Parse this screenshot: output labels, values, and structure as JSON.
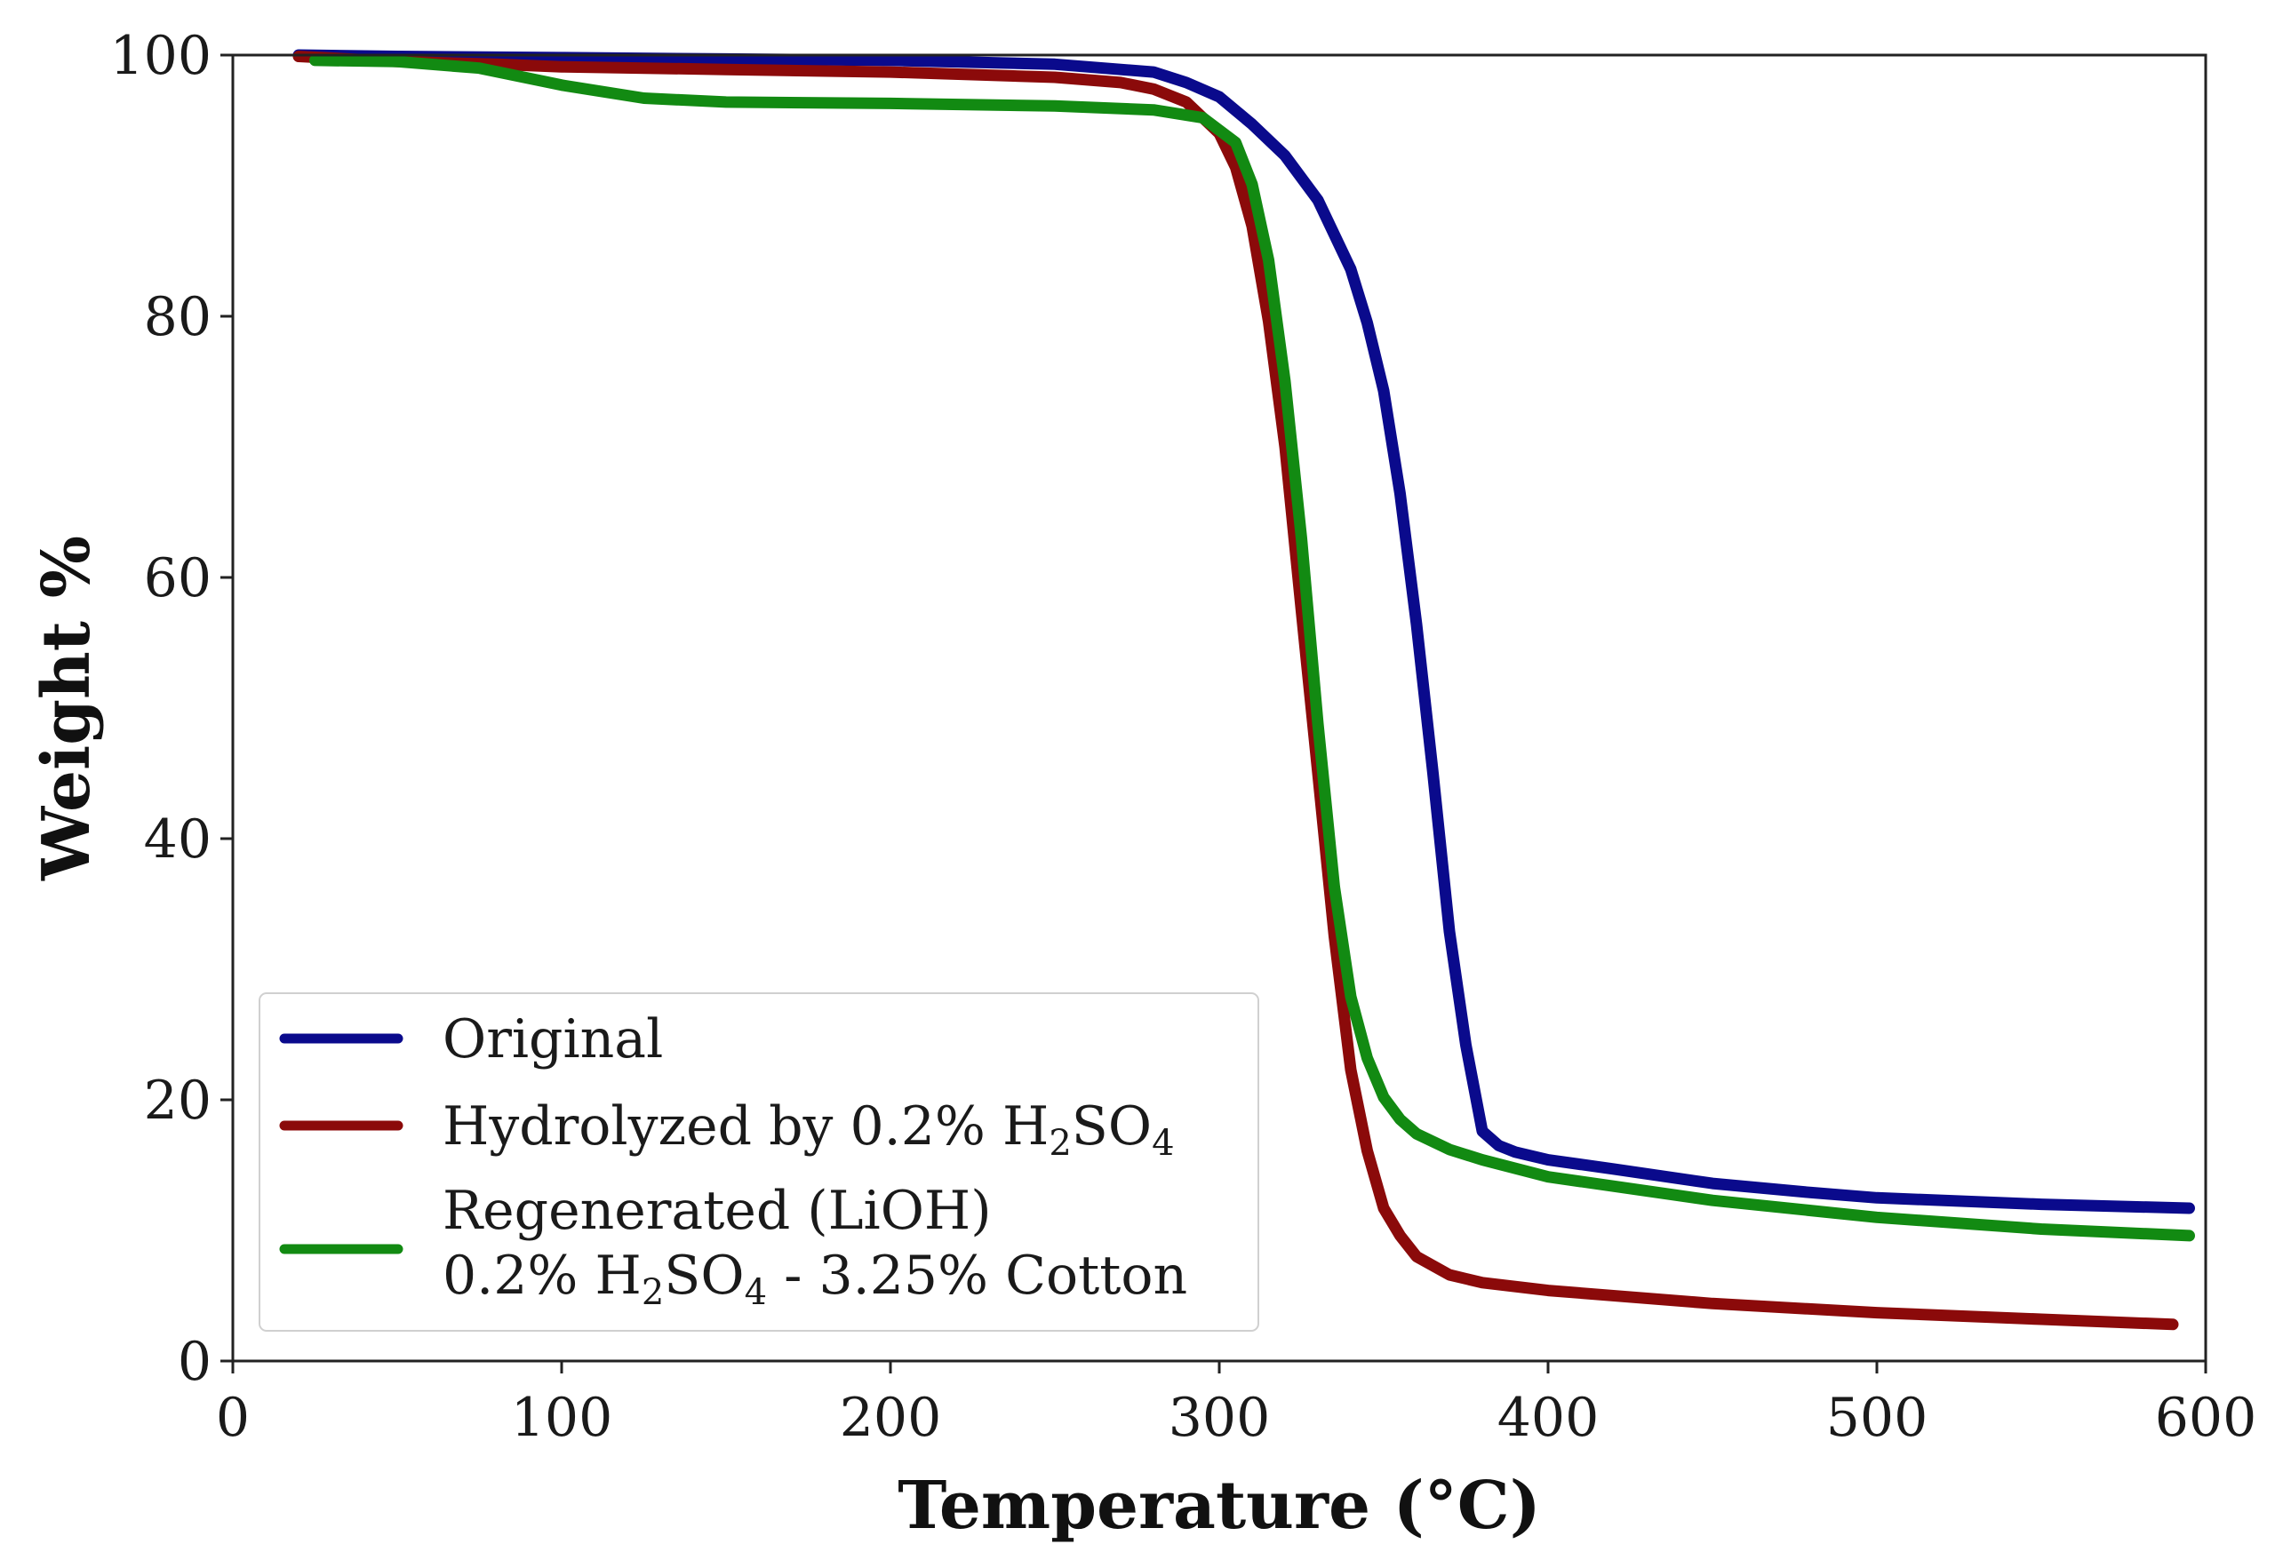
{
  "chart_data": {
    "type": "line",
    "title": "",
    "xlabel": "Temperature (°C)",
    "ylabel": "Weight %",
    "xlim": [
      0,
      600
    ],
    "ylim": [
      0,
      100
    ],
    "xticks": [
      0,
      100,
      200,
      300,
      400,
      500,
      600
    ],
    "yticks": [
      0,
      20,
      40,
      60,
      80,
      100
    ],
    "grid": false,
    "legend_position": "lower-left",
    "series": [
      {
        "name": "Original",
        "legend": [
          "Original"
        ],
        "color": "#0a0a8c",
        "x": [
          20,
          50,
          100,
          150,
          200,
          250,
          280,
          290,
          300,
          310,
          320,
          330,
          340,
          345,
          350,
          355,
          360,
          365,
          370,
          375,
          380,
          385,
          390,
          400,
          420,
          450,
          480,
          500,
          550,
          595
        ],
        "y": [
          100,
          99.9,
          99.8,
          99.7,
          99.6,
          99.3,
          98.7,
          97.9,
          96.8,
          94.7,
          92.3,
          88.9,
          83.6,
          79.5,
          74.3,
          66.4,
          56.4,
          45.0,
          32.9,
          24.2,
          17.6,
          16.5,
          16.0,
          15.4,
          14.7,
          13.6,
          12.9,
          12.5,
          12.0,
          11.7
        ]
      },
      {
        "name": "Hydrolyzed by 0.2% H2SO4",
        "legend": [
          "Hydrolyzed by 0.2% H",
          "2",
          "SO",
          "4"
        ],
        "color": "#8b0a0a",
        "x": [
          20,
          50,
          80,
          100,
          150,
          200,
          250,
          270,
          280,
          290,
          300,
          305,
          310,
          315,
          320,
          325,
          330,
          335,
          340,
          345,
          350,
          355,
          360,
          370,
          380,
          400,
          450,
          500,
          550,
          590
        ],
        "y": [
          99.9,
          99.5,
          99.3,
          99.1,
          98.9,
          98.7,
          98.3,
          97.9,
          97.4,
          96.4,
          94.0,
          91.4,
          86.9,
          79.6,
          70.0,
          57.4,
          45.0,
          32.5,
          22.3,
          16.1,
          11.7,
          9.6,
          8.0,
          6.6,
          6.0,
          5.4,
          4.4,
          3.7,
          3.2,
          2.8
        ]
      },
      {
        "name": "Regenerated (LiOH) 0.2% H2SO4 - 3.25% Cotton",
        "legend": [
          "Regenerated (LiOH)",
          "0.2% H",
          "2",
          "SO",
          "4",
          " - 3.25% Cotton"
        ],
        "color": "#128a12",
        "x": [
          25,
          50,
          75,
          100,
          125,
          150,
          200,
          250,
          280,
          295,
          305,
          310,
          315,
          320,
          325,
          330,
          335,
          340,
          345,
          350,
          355,
          360,
          370,
          380,
          400,
          450,
          500,
          550,
          595
        ],
        "y": [
          99.6,
          99.5,
          99.0,
          97.7,
          96.7,
          96.4,
          96.3,
          96.1,
          95.8,
          95.2,
          93.3,
          90.1,
          84.3,
          75.0,
          63.0,
          48.8,
          36.3,
          27.9,
          23.2,
          20.2,
          18.5,
          17.4,
          16.2,
          15.4,
          14.1,
          12.3,
          11.0,
          10.1,
          9.6
        ]
      }
    ]
  }
}
